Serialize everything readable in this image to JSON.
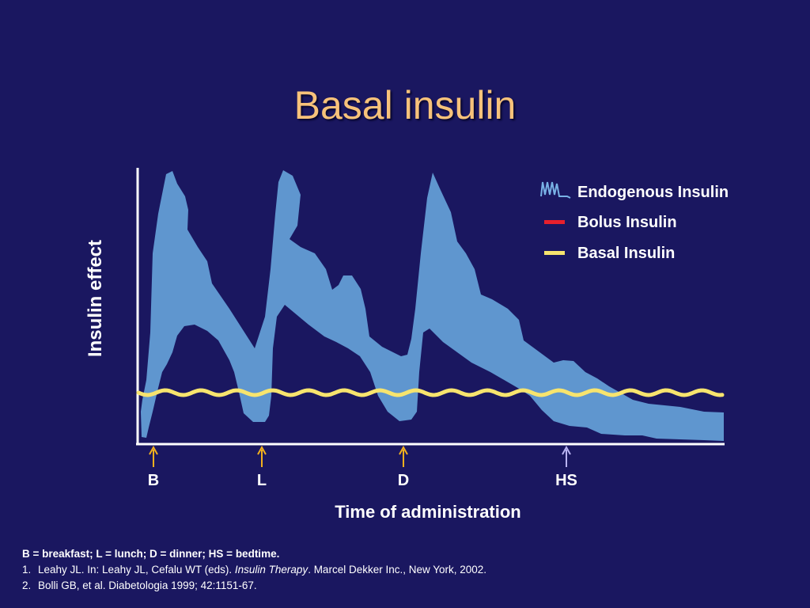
{
  "slide": {
    "title": "Basal insulin"
  },
  "chart_data": {
    "type": "line",
    "title": "Basal insulin",
    "xlabel": "Time of administration",
    "ylabel": "Insulin effect",
    "x_ticks": [
      {
        "label": "B",
        "color": "#f2b01e"
      },
      {
        "label": "L",
        "color": "#f2b01e"
      },
      {
        "label": "D",
        "color": "#f2b01e"
      },
      {
        "label": "HS",
        "color": "#b9b4f2"
      }
    ],
    "legend": [
      {
        "name": "Endogenous Insulin",
        "color": "#79b2e6",
        "icon": "waveform-icon"
      },
      {
        "name": "Bolus Insulin",
        "color": "#e8202c",
        "icon": "line-icon"
      },
      {
        "name": "Basal Insulin",
        "color": "#f7e46e",
        "icon": "line-icon"
      }
    ],
    "legend_position": "top-right",
    "series": [
      {
        "name": "Endogenous Insulin",
        "style": "band",
        "color": "#5f96cf"
      },
      {
        "name": "Basal Insulin",
        "style": "wavy-flat",
        "color": "#f7e46e"
      }
    ],
    "grid": false,
    "axis_color": "#ffffff"
  },
  "notes": {
    "abbreviations": "B = breakfast; L = lunch; D = dinner; HS = bedtime.",
    "references": [
      {
        "num": "1.",
        "pre": "Leahy JL. In: Leahy JL, Cefalu WT (eds). ",
        "italic": "Insulin Therapy",
        "post": ". Marcel Dekker Inc., New York, 2002."
      },
      {
        "num": "2.",
        "pre": "Bolli GB, et al. Diabetologia 1999; 42:1151-67.",
        "italic": "",
        "post": ""
      }
    ]
  }
}
